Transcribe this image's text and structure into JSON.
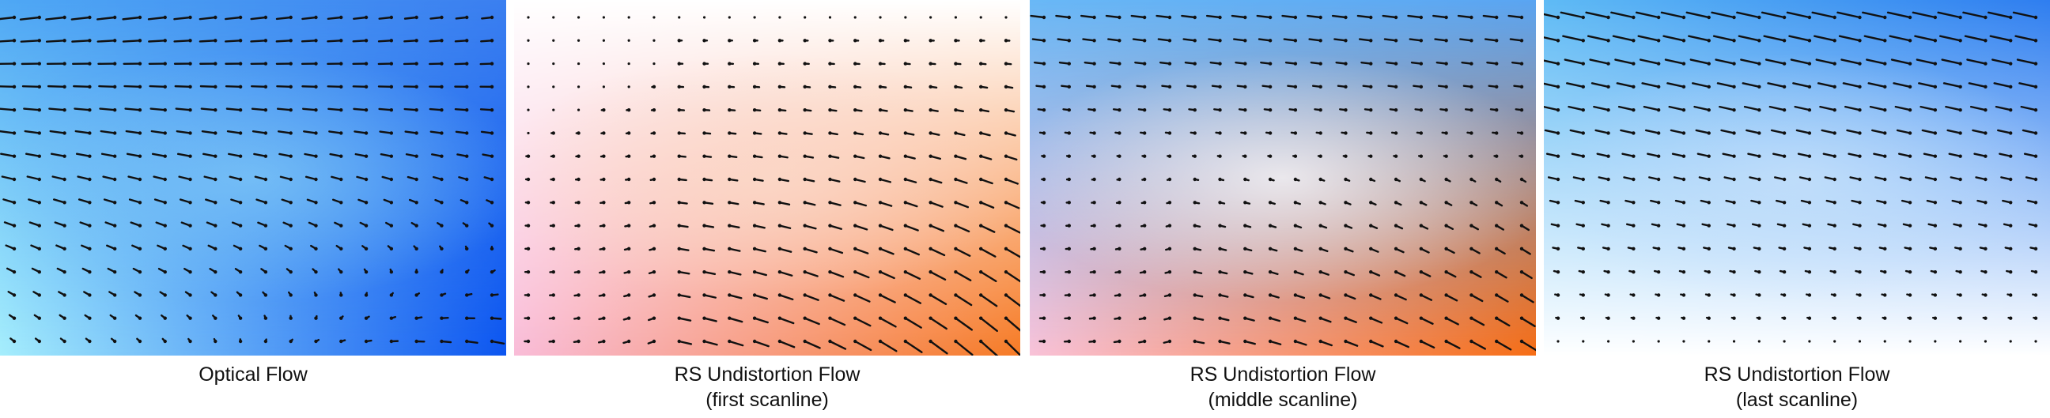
{
  "panels": [
    {
      "id": "optical",
      "caption": [
        "Optical Flow"
      ],
      "colors": {
        "tl": "#4fa8f4",
        "tr": "#3b7ff0",
        "bl": "#a6eefc",
        "br": "#0c55f0",
        "mid": "#7fc8f6"
      }
    },
    {
      "id": "first",
      "caption": [
        "RS Undistortion Flow",
        "(first scanline)"
      ],
      "colors": {
        "tl": "#ffffff",
        "tr": "#ffffff",
        "bl": "#f9bcd8",
        "br": "#f67a24",
        "mid": "#fbd9c8"
      }
    },
    {
      "id": "middle",
      "caption": [
        "RS Undistortion Flow",
        "(middle scanline)"
      ],
      "colors": {
        "tl": "#69b8f6",
        "tr": "#5aa5f2",
        "bl": "#f9c2d8",
        "br": "#f76d14",
        "mid": "#ffffff"
      }
    },
    {
      "id": "last",
      "caption": [
        "RS Undistortion Flow",
        "(last scanline)"
      ],
      "colors": {
        "tl": "#5fbbf5",
        "tr": "#2f7ef0",
        "bl": "#ffffff",
        "br": "#ffffff",
        "mid": "#c8e2fb"
      }
    }
  ]
}
